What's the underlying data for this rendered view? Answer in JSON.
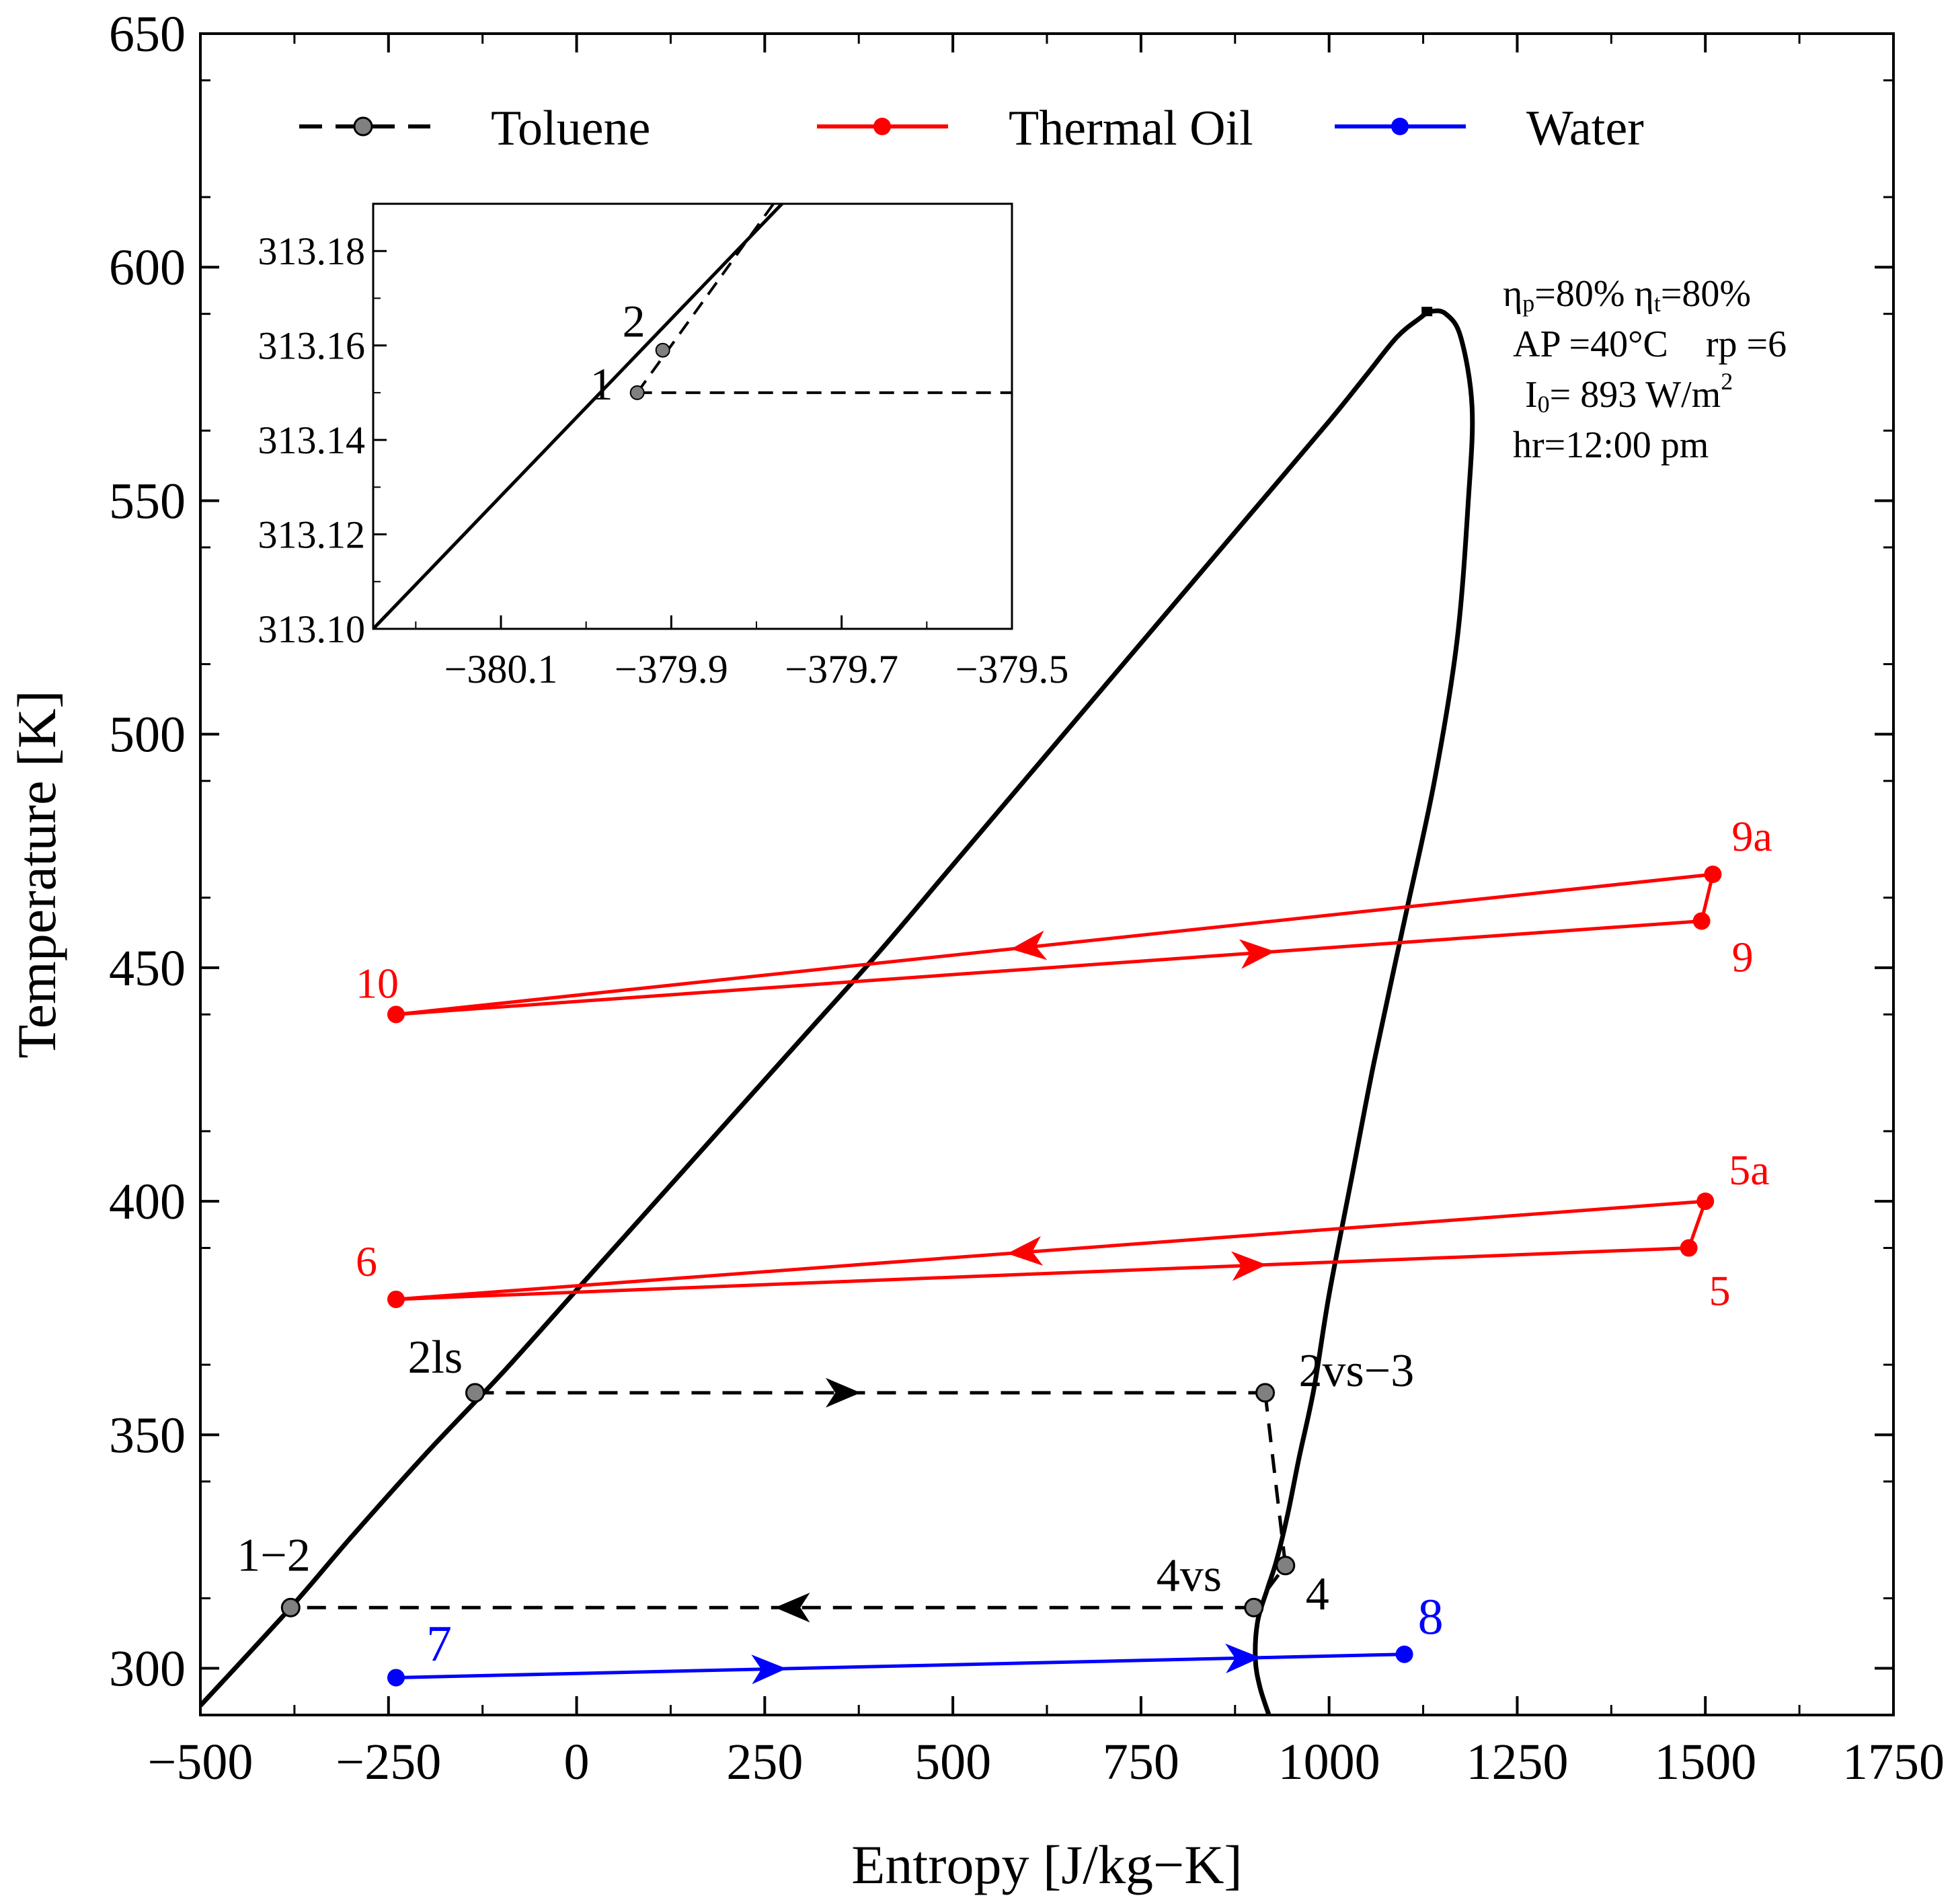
{
  "chart_data": {
    "type": "line",
    "xlabel": "Entropy [J/kg−K]",
    "ylabel": "Temperature [K]",
    "xlim": [
      -500,
      1750
    ],
    "ylim": [
      290,
      650
    ],
    "x_ticks": [
      -500,
      -250,
      0,
      250,
      500,
      750,
      1000,
      1250,
      1500,
      1750
    ],
    "x_tick_labels": [
      "−500",
      "−250",
      "0",
      "250",
      "500",
      "750",
      "1000",
      "1250",
      "1500",
      "1750"
    ],
    "y_ticks": [
      300,
      350,
      400,
      450,
      500,
      550,
      600,
      650
    ],
    "y_tick_labels": [
      "300",
      "350",
      "400",
      "450",
      "500",
      "550",
      "600",
      "650"
    ],
    "legend": {
      "placement": "top",
      "entries": [
        {
          "name": "Toluene",
          "color": "#000000",
          "marker_color": "#808080",
          "dash": true
        },
        {
          "name": "Thermal Oil",
          "color": "#ff0000",
          "marker_color": "#ff0000",
          "dash": false
        },
        {
          "name": "Water",
          "color": "#0000ff",
          "marker_color": "#0000ff",
          "dash": false
        }
      ]
    },
    "saturation_dome": {
      "color": "#000000",
      "x": [
        -500,
        -380,
        -300,
        -200,
        -100,
        0,
        100,
        200,
        300,
        400,
        500,
        600,
        700,
        800,
        900,
        1000,
        1050,
        1090,
        1120,
        1135,
        1155,
        1175,
        1190,
        1185,
        1170,
        1140,
        1100,
        1060,
        1030,
        1000,
        980,
        960,
        945,
        930,
        918,
        905,
        902,
        908,
        920
      ],
      "y": [
        292,
        313,
        328,
        346,
        363,
        381,
        399,
        417,
        435,
        453,
        472,
        491,
        510,
        529,
        548,
        567,
        577,
        585,
        589,
        590.5,
        590,
        585,
        570,
        550,
        520,
        490,
        460,
        430,
        405,
        380,
        360,
        345,
        333,
        323,
        317,
        310,
        302,
        296,
        290
      ],
      "critical_point": [
        1130,
        590.5
      ]
    },
    "toluene_cycle": {
      "color": "#000000",
      "marker_color": "#808080",
      "points": [
        {
          "label": "1−2",
          "x": -380,
          "y": 313
        },
        {
          "label": "2ls",
          "x": -135,
          "y": 359
        },
        {
          "label": "2vs−3",
          "x": 915,
          "y": 359
        },
        {
          "label": "4",
          "x": 942,
          "y": 322
        },
        {
          "label": "4vs",
          "x": 900,
          "y": 313
        }
      ]
    },
    "thermal_oil_lines": {
      "color": "#ff0000",
      "points": [
        {
          "label": "9a",
          "x": 1510,
          "y": 470
        },
        {
          "label": "9",
          "x": 1495,
          "y": 460
        },
        {
          "label": "10",
          "x": -240,
          "y": 440
        },
        {
          "label": "5a",
          "x": 1500,
          "y": 400
        },
        {
          "label": "5",
          "x": 1478,
          "y": 390
        },
        {
          "label": "6",
          "x": -240,
          "y": 379
        }
      ]
    },
    "water_line": {
      "color": "#0000ff",
      "points": [
        {
          "label": "7",
          "x": -240,
          "y": 298
        },
        {
          "label": "8",
          "x": 1100,
          "y": 303
        }
      ]
    },
    "annotations": [
      {
        "html": "η",
        "sub": "p",
        "rest": "=80% ",
        "html2": "η",
        "sub2": "t",
        "rest2": "=80%"
      },
      {
        "text": "AP =40°C    rp =6"
      },
      {
        "text_a": "I",
        "sub": "0",
        "text_b": "= 893 W/m",
        "sup": "2"
      },
      {
        "text": "hr=12:00 pm"
      }
    ],
    "inset": {
      "xlim": [
        -380.25,
        -379.5
      ],
      "ylim": [
        313.1,
        313.19
      ],
      "x_ticks": [
        -380.1,
        -379.9,
        -379.7,
        -379.5
      ],
      "x_tick_labels": [
        "−380.1",
        "−379.9",
        "−379.7",
        "−379.5"
      ],
      "y_ticks": [
        313.1,
        313.12,
        313.14,
        313.16,
        313.18
      ],
      "y_tick_labels": [
        "313.10",
        "313.12",
        "313.14",
        "313.16",
        "313.18"
      ],
      "solid_line": {
        "x": [
          -380.25,
          -379.77
        ],
        "y": [
          313.1,
          313.19
        ]
      },
      "dashed_line": {
        "x": [
          -379.94,
          -379.78
        ],
        "y": [
          313.15,
          313.19
        ]
      },
      "horizontal_dashed": {
        "x": [
          -379.94,
          -379.5
        ],
        "y": 313.15
      },
      "points": [
        {
          "label": "1",
          "x": -379.94,
          "y": 313.15
        },
        {
          "label": "2",
          "x": -379.91,
          "y": 313.159
        }
      ]
    }
  }
}
